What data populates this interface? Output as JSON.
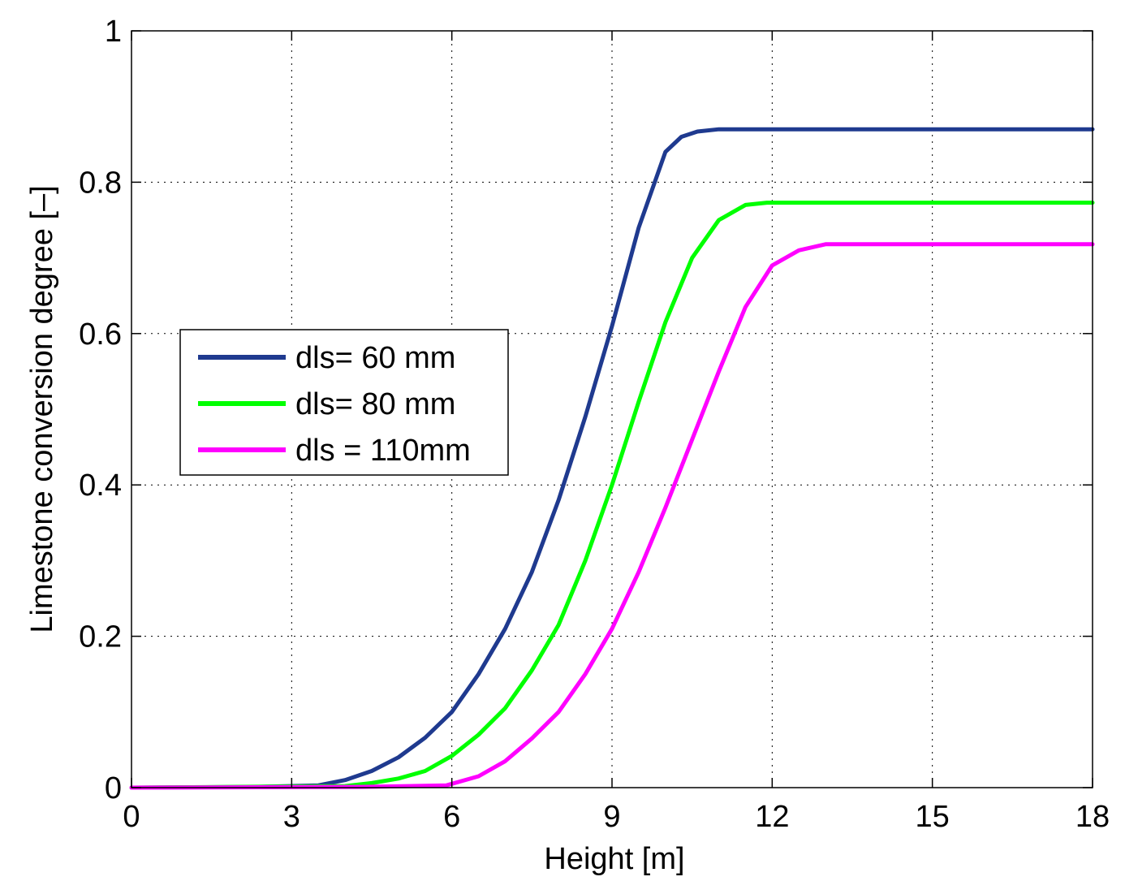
{
  "chart_data": {
    "type": "line",
    "xlabel": "Height [m]",
    "ylabel": "Limestone conversion degree  [–]",
    "xlim": [
      0,
      18
    ],
    "ylim": [
      0,
      1
    ],
    "xticks": [
      0,
      3,
      6,
      9,
      12,
      15,
      18
    ],
    "xtick_labels": [
      "0",
      "3",
      "6",
      "9",
      "12",
      "15",
      "18"
    ],
    "yticks": [
      0,
      0.2,
      0.4,
      0.6,
      0.8,
      1
    ],
    "ytick_labels": [
      "0",
      "0.2",
      "0.4",
      "0.6",
      "0.8",
      "1"
    ],
    "grid": true,
    "legend_position": "middle-left",
    "series": [
      {
        "name": "dls= 60 mm",
        "color": "#1f3a8f",
        "x": [
          0,
          2.3,
          3.5,
          4.0,
          4.5,
          5.0,
          5.5,
          6.0,
          6.5,
          7.0,
          7.5,
          8.0,
          8.5,
          9.0,
          9.5,
          10.0,
          10.3,
          10.6,
          11.0,
          18
        ],
        "y": [
          0,
          0.001,
          0.003,
          0.01,
          0.022,
          0.04,
          0.066,
          0.1,
          0.15,
          0.21,
          0.285,
          0.38,
          0.49,
          0.61,
          0.74,
          0.84,
          0.86,
          0.867,
          0.87,
          0.87
        ]
      },
      {
        "name": "dls= 80 mm",
        "color": "#00ff00",
        "x": [
          0,
          4.0,
          4.5,
          5.0,
          5.5,
          6.0,
          6.5,
          7.0,
          7.5,
          8.0,
          8.5,
          9.0,
          9.5,
          10.0,
          10.5,
          11.0,
          11.5,
          11.9,
          18
        ],
        "y": [
          0,
          0.002,
          0.006,
          0.012,
          0.022,
          0.042,
          0.07,
          0.105,
          0.155,
          0.215,
          0.3,
          0.4,
          0.51,
          0.615,
          0.7,
          0.75,
          0.77,
          0.773,
          0.773
        ]
      },
      {
        "name": "dls = 110mm",
        "color": "#ff00ff",
        "x": [
          0,
          4.3,
          5.9,
          6.5,
          7.0,
          7.5,
          8.0,
          8.5,
          9.0,
          9.5,
          10.0,
          10.5,
          11.0,
          11.5,
          12.0,
          12.5,
          13.0,
          18
        ],
        "y": [
          0,
          0.001,
          0.003,
          0.015,
          0.035,
          0.065,
          0.1,
          0.15,
          0.21,
          0.285,
          0.37,
          0.46,
          0.55,
          0.635,
          0.69,
          0.71,
          0.718,
          0.718
        ]
      }
    ]
  }
}
